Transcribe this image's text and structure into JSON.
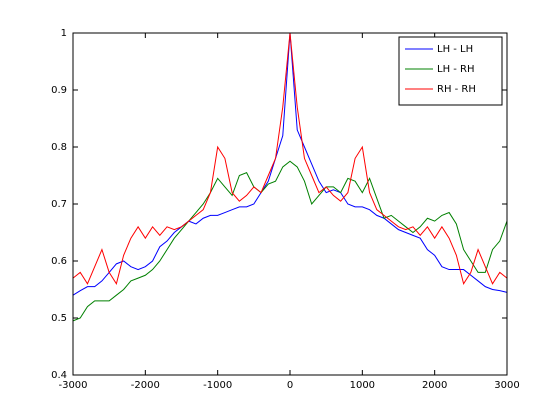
{
  "chart_data": {
    "type": "line",
    "x": [
      -3000,
      -2900,
      -2800,
      -2700,
      -2600,
      -2500,
      -2400,
      -2300,
      -2200,
      -2100,
      -2000,
      -1900,
      -1800,
      -1700,
      -1600,
      -1500,
      -1400,
      -1300,
      -1200,
      -1100,
      -1000,
      -900,
      -800,
      -700,
      -600,
      -500,
      -400,
      -300,
      -200,
      -100,
      0,
      100,
      200,
      300,
      400,
      500,
      600,
      700,
      800,
      900,
      1000,
      1100,
      1200,
      1300,
      1400,
      1500,
      1600,
      1700,
      1800,
      1900,
      2000,
      2100,
      2200,
      2300,
      2400,
      2500,
      2600,
      2700,
      2800,
      2900,
      3000
    ],
    "series": [
      {
        "name": "LH - LH",
        "color": "#0000ff",
        "values": [
          0.54,
          0.548,
          0.555,
          0.555,
          0.565,
          0.58,
          0.595,
          0.6,
          0.59,
          0.585,
          0.59,
          0.6,
          0.625,
          0.635,
          0.65,
          0.66,
          0.67,
          0.665,
          0.675,
          0.68,
          0.68,
          0.685,
          0.69,
          0.695,
          0.695,
          0.7,
          0.72,
          0.74,
          0.78,
          0.82,
          1.0,
          0.83,
          0.8,
          0.77,
          0.74,
          0.72,
          0.725,
          0.72,
          0.7,
          0.695,
          0.695,
          0.69,
          0.68,
          0.675,
          0.665,
          0.655,
          0.65,
          0.645,
          0.64,
          0.62,
          0.61,
          0.59,
          0.585,
          0.585,
          0.585,
          0.575,
          0.565,
          0.555,
          0.55,
          0.548,
          0.545
        ]
      },
      {
        "name": "LH - RH",
        "color": "#008000",
        "values": [
          0.495,
          0.5,
          0.52,
          0.53,
          0.53,
          0.53,
          0.54,
          0.55,
          0.565,
          0.57,
          0.575,
          0.585,
          0.6,
          0.62,
          0.64,
          0.655,
          0.67,
          0.685,
          0.7,
          0.72,
          0.745,
          0.73,
          0.715,
          0.75,
          0.755,
          0.73,
          0.72,
          0.735,
          0.74,
          0.765,
          0.775,
          0.765,
          0.74,
          0.7,
          0.715,
          0.73,
          0.73,
          0.72,
          0.745,
          0.74,
          0.72,
          0.745,
          0.71,
          0.675,
          0.68,
          0.67,
          0.66,
          0.65,
          0.66,
          0.675,
          0.67,
          0.68,
          0.685,
          0.665,
          0.62,
          0.6,
          0.58,
          0.58,
          0.62,
          0.635,
          0.67
        ]
      },
      {
        "name": "RH - RH",
        "color": "#ff0000",
        "values": [
          0.57,
          0.58,
          0.56,
          0.59,
          0.62,
          0.58,
          0.56,
          0.61,
          0.64,
          0.66,
          0.64,
          0.66,
          0.645,
          0.66,
          0.655,
          0.66,
          0.67,
          0.68,
          0.69,
          0.72,
          0.8,
          0.78,
          0.72,
          0.705,
          0.715,
          0.73,
          0.72,
          0.75,
          0.78,
          0.87,
          1.0,
          0.87,
          0.78,
          0.75,
          0.72,
          0.73,
          0.715,
          0.705,
          0.72,
          0.78,
          0.8,
          0.72,
          0.69,
          0.68,
          0.67,
          0.66,
          0.655,
          0.66,
          0.645,
          0.66,
          0.64,
          0.66,
          0.64,
          0.61,
          0.56,
          0.58,
          0.62,
          0.59,
          0.56,
          0.58,
          0.57
        ]
      }
    ],
    "xlim": [
      -3000,
      3000
    ],
    "xticks": [
      -3000,
      -2000,
      -1000,
      0,
      1000,
      2000,
      3000
    ],
    "ylim": [
      0.4,
      1
    ],
    "yticks": [
      0.4,
      0.5,
      0.6,
      0.7,
      0.8,
      0.9,
      1
    ],
    "grid": false,
    "legend": "northeast"
  }
}
